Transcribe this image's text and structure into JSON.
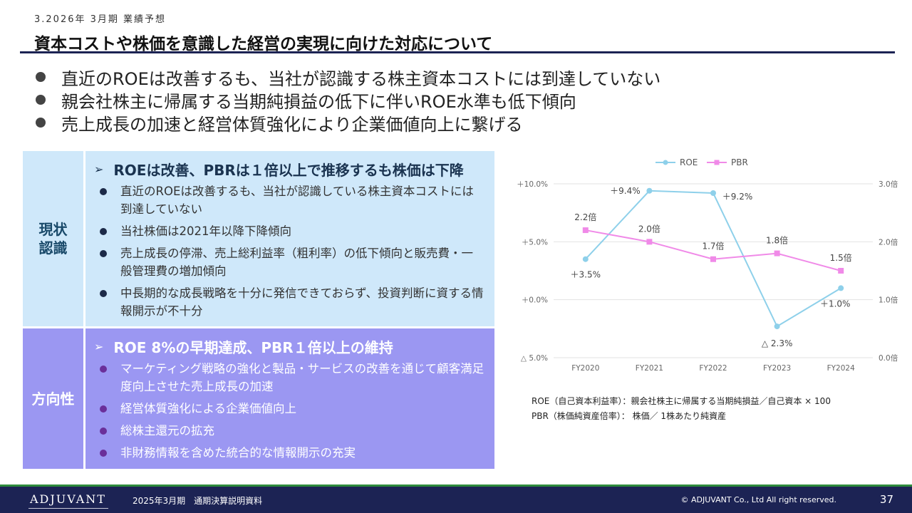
{
  "header": {
    "small_label": "3.2026年 3月期 業績予想",
    "title": "資本コストや株価を意識した経営の実現に向けた対応について"
  },
  "bullets": [
    "直近のROEは改善するも、当社が認識する株主資本コストには到達していない",
    "親会社株主に帰属する当期純損益の低下に伴いROE水準も低下傾向",
    "売上成長の加速と経営体質強化により企業価値向上に繋げる"
  ],
  "status_panel": {
    "side_label": "現状\n認識",
    "headline": "ROEは改善、PBRは１倍以上で推移するも株価は下降",
    "items": [
      "直近のROEは改善するも、当社が認識している株主資本コストには到達していない",
      "当社株価は2021年以降下降傾向",
      "売上成長の停滞、売上総利益率（粗利率）の低下傾向と販売費・一般管理費の増加傾向",
      "中長期的な成長戦略を十分に発信できておらず、投資判断に資する情報開示が不十分"
    ]
  },
  "direction_panel": {
    "side_label": "方向性",
    "headline": "ROE 8%の早期達成、PBR１倍以上の維持",
    "items": [
      "マーケティング戦略の強化と製品・サービスの改善を通じて顧客満足度向上させた売上成長の加速",
      "経営体質強化による企業価値向上",
      "総株主還元の拡充",
      "非財務情報を含めた統合的な情報開示の充実"
    ]
  },
  "chart_data": {
    "type": "line",
    "categories": [
      "FY2020",
      "FY2021",
      "FY2022",
      "FY2023",
      "FY2024"
    ],
    "series": [
      {
        "name": "ROE",
        "axis": "left",
        "color": "#8ed0ea",
        "values": [
          3.5,
          9.4,
          9.2,
          -2.3,
          1.0
        ],
        "labels": [
          "＋3.5%",
          "＋9.4%",
          "＋9.2%",
          "△ 2.3%",
          "＋1.0%"
        ]
      },
      {
        "name": "PBR",
        "axis": "right",
        "color": "#f08ae8",
        "values": [
          2.2,
          2.0,
          1.7,
          1.8,
          1.5
        ],
        "labels": [
          "2.2倍",
          "2.0倍",
          "1.7倍",
          "1.8倍",
          "1.5倍"
        ]
      }
    ],
    "left_axis": {
      "ylim": [
        -5,
        10
      ],
      "ticks": [
        10,
        5,
        0,
        -5
      ],
      "tick_labels": [
        "＋10.0%",
        "＋5.0%",
        "＋0.0%",
        "△ 5.0%"
      ]
    },
    "right_axis": {
      "ylim": [
        0,
        3
      ],
      "ticks": [
        3,
        2,
        1,
        0
      ],
      "tick_labels": [
        "3.0倍",
        "2.0倍",
        "1.0倍",
        "0.0倍"
      ]
    },
    "grid": true,
    "legend_position": "top"
  },
  "notes": [
    "ROE（自己資本利益率）：親会社株主に帰属する当期純損益／自己資本 × 100",
    "PBR（株価純資産倍率）： 株価／ 1株あたり純資産"
  ],
  "footer": {
    "logo": "ADJUVANT",
    "document": "2025年3月期　通期決算説明資料",
    "copyright": "© ADJUVANT Co., Ltd All right reserved.",
    "page_number": "37"
  }
}
